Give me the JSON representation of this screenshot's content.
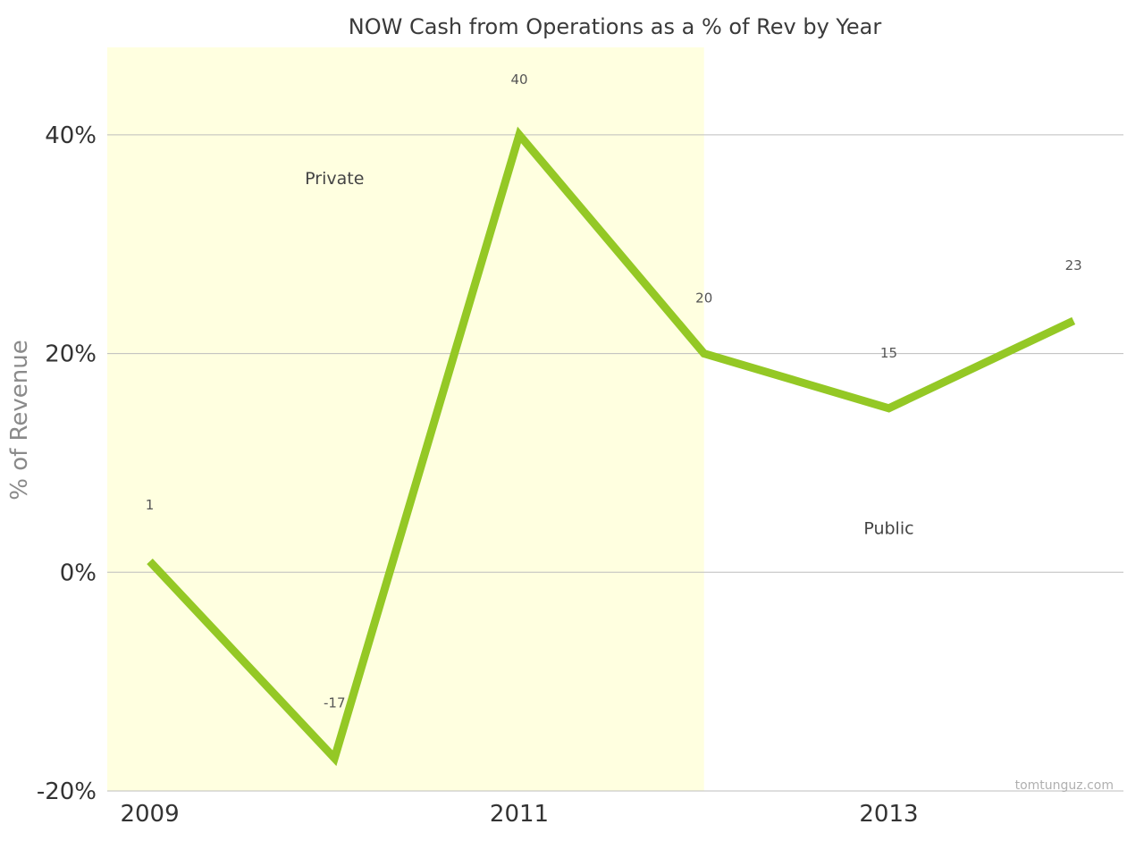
{
  "chart_data": {
    "type": "line",
    "title": "NOW Cash from Operations as a % of Rev by Year",
    "xlabel": "",
    "ylabel": "% of Revenue",
    "x": [
      2009,
      2010,
      2011,
      2012,
      2013,
      2014
    ],
    "series": [
      {
        "values": [
          1,
          -17,
          40,
          20,
          15,
          23
        ],
        "labels": [
          "1",
          "-17",
          "40",
          "20",
          "15",
          "23"
        ]
      }
    ],
    "xticks": [
      2009,
      2011,
      2013
    ],
    "xtick_labels": [
      "2009",
      "2011",
      "2013"
    ],
    "yticks": [
      -20,
      0,
      20,
      40
    ],
    "ytick_labels": [
      "-20%",
      "0%",
      "20%",
      "40%"
    ],
    "ylim": [
      -20,
      48
    ],
    "xlim": [
      2008.77,
      2014.27
    ],
    "grid": true,
    "legend": "none",
    "annotations": [
      {
        "text": "Private",
        "x": 2010,
        "y": 36
      },
      {
        "text": "Public",
        "x": 2013,
        "y": 4
      }
    ],
    "shaded_region": {
      "x_from": 2008.77,
      "x_to": 2012,
      "color": "#ffffe0"
    },
    "credit": "tomtunguz.com",
    "colors": {
      "line": "#94c825",
      "grid": "#bdbdbd",
      "shade": "#ffffe0"
    }
  }
}
